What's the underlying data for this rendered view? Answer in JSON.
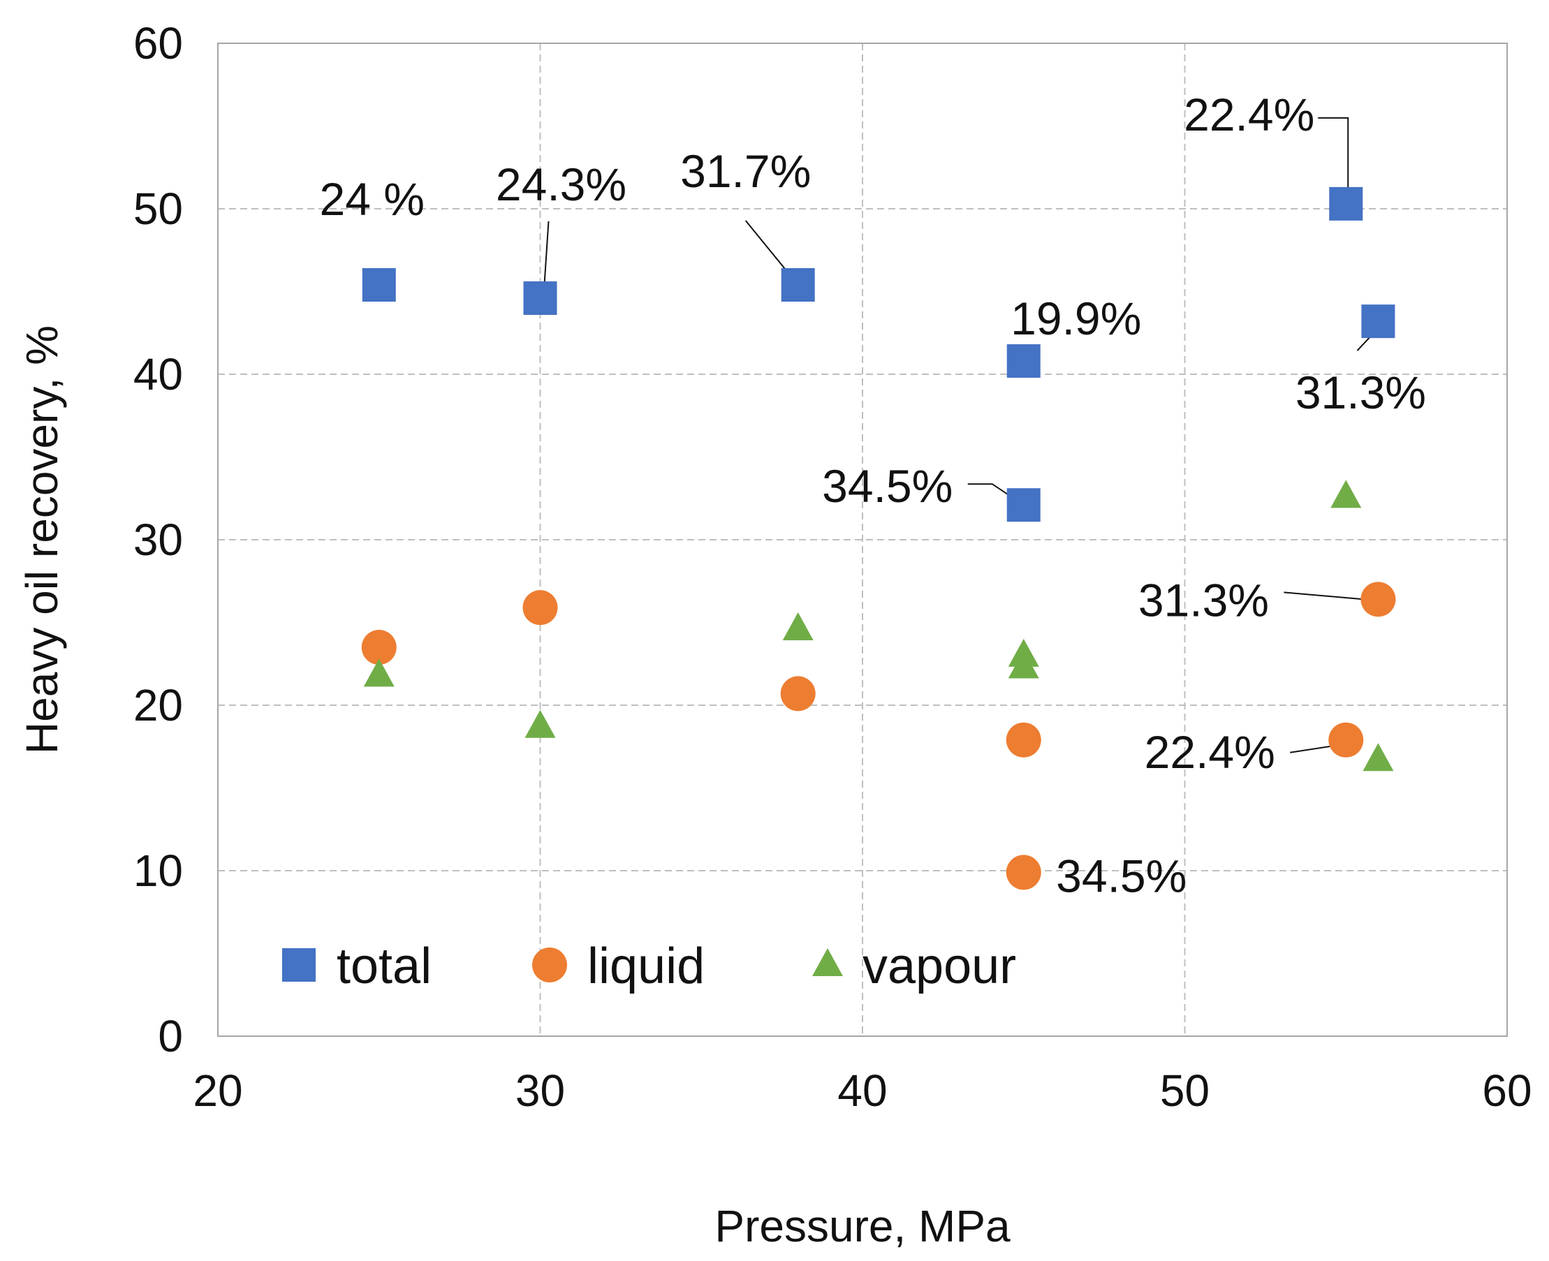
{
  "chart_data": {
    "type": "scatter",
    "title": "",
    "xlabel": "Pressure, MPa",
    "ylabel": "Heavy oil recovery, %",
    "xlim": [
      20,
      60
    ],
    "ylim": [
      0,
      60
    ],
    "x_ticks": [
      "20",
      "30",
      "40",
      "50",
      "60"
    ],
    "y_ticks": [
      "0",
      "10",
      "20",
      "30",
      "40",
      "50",
      "60"
    ],
    "grid": true,
    "legend_position": "bottom-left inside",
    "series": [
      {
        "name": "total",
        "marker": "square",
        "color": "#4472C4",
        "points": [
          {
            "x": 25,
            "y": 45.4
          },
          {
            "x": 30,
            "y": 44.6
          },
          {
            "x": 38,
            "y": 45.4
          },
          {
            "x": 45,
            "y": 40.8
          },
          {
            "x": 45,
            "y": 32.1
          },
          {
            "x": 55,
            "y": 50.3
          },
          {
            "x": 56,
            "y": 43.2
          }
        ]
      },
      {
        "name": "liquid",
        "marker": "circle",
        "color": "#ED7D31",
        "points": [
          {
            "x": 25,
            "y": 23.5
          },
          {
            "x": 30,
            "y": 25.9
          },
          {
            "x": 38,
            "y": 20.7
          },
          {
            "x": 45,
            "y": 17.9
          },
          {
            "x": 45,
            "y": 9.9
          },
          {
            "x": 55,
            "y": 17.9
          },
          {
            "x": 56,
            "y": 26.4
          }
        ]
      },
      {
        "name": "vapour",
        "marker": "triangle",
        "color": "#70AD47",
        "points": [
          {
            "x": 25,
            "y": 21.8
          },
          {
            "x": 30,
            "y": 18.7
          },
          {
            "x": 38,
            "y": 24.6
          },
          {
            "x": 45,
            "y": 23.0
          },
          {
            "x": 45,
            "y": 22.3
          },
          {
            "x": 55,
            "y": 32.6
          },
          {
            "x": 56,
            "y": 16.7
          }
        ]
      }
    ],
    "annotations": [
      {
        "text": "24 %",
        "x": 25,
        "y": 45.4
      },
      {
        "text": "24.3%",
        "x": 30,
        "y": 44.6
      },
      {
        "text": "31.7%",
        "x": 38,
        "y": 45.4
      },
      {
        "text": "19.9%",
        "x": 45,
        "y": 40.8
      },
      {
        "text": "34.5%",
        "x": 45,
        "y": 32.1
      },
      {
        "text": "22.4%",
        "x": 55,
        "y": 50.3
      },
      {
        "text": "31.3%",
        "x": 56,
        "y": 43.2
      },
      {
        "text": "31.3%",
        "x": 56,
        "y": 26.4
      },
      {
        "text": "22.4%",
        "x": 55,
        "y": 17.9
      },
      {
        "text": "34.5%",
        "x": 45,
        "y": 9.9
      }
    ]
  }
}
